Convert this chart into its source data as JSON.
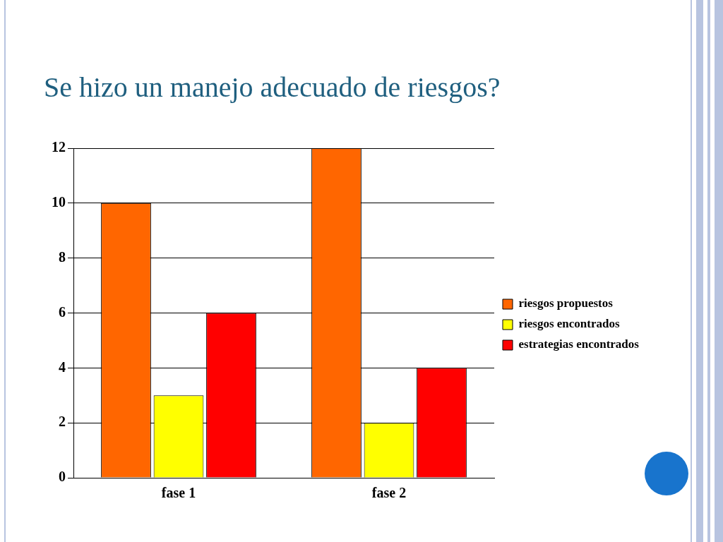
{
  "chart_data": {
    "type": "bar",
    "title": "Se hizo un manejo adecuado de riesgos?",
    "categories": [
      "fase 1",
      "fase 2"
    ],
    "series": [
      {
        "name": "riesgos propuestos",
        "color": "#ff6600",
        "values": [
          10,
          12
        ]
      },
      {
        "name": "riesgos encontrados",
        "color": "#ffff00",
        "values": [
          3,
          2
        ]
      },
      {
        "name": "estrategias encontrados",
        "color": "#ff0000",
        "values": [
          6,
          4
        ]
      }
    ],
    "ylim": [
      0,
      12
    ],
    "yticks": [
      0,
      2,
      4,
      6,
      8,
      10,
      12
    ],
    "grid": "y",
    "legend": "right"
  }
}
